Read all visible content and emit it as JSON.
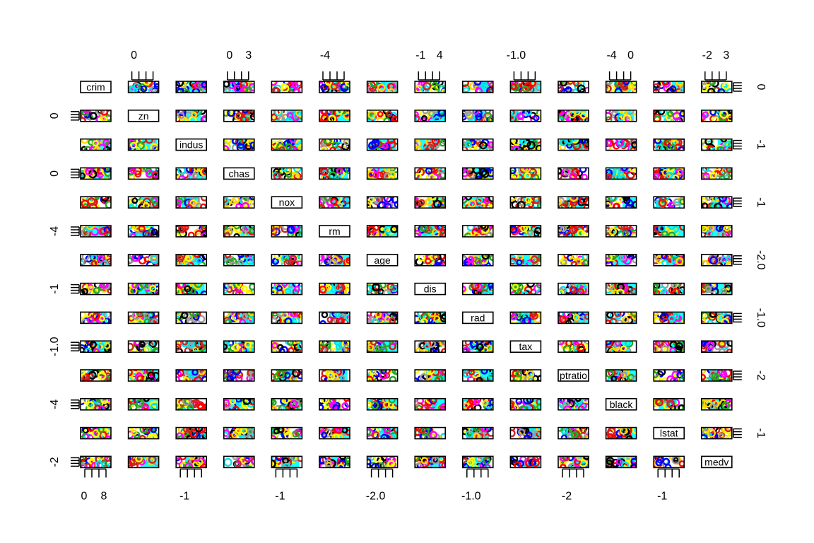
{
  "chart_data": {
    "type": "scatter",
    "subtype": "scatterplot-matrix",
    "title": "",
    "variables": [
      "crim",
      "zn",
      "indus",
      "chas",
      "nox",
      "rm",
      "age",
      "dis",
      "rad",
      "tax",
      "ptratio",
      "black",
      "lstat",
      "medv"
    ],
    "diagonal_labels": [
      "crim",
      "zn",
      "indus",
      "chas",
      "nox",
      "rm",
      "age",
      "dis",
      "rad",
      "tax",
      "ptratio",
      "black",
      "lstat",
      "medv"
    ],
    "top_axis_ticks": [
      {
        "column": 1,
        "labels": [
          "0"
        ]
      },
      {
        "column": 3,
        "labels": [
          "0",
          "3"
        ]
      },
      {
        "column": 5,
        "labels": [
          "-4"
        ]
      },
      {
        "column": 7,
        "labels": [
          "-1",
          "4"
        ]
      },
      {
        "column": 9,
        "labels": [
          "-1.0"
        ]
      },
      {
        "column": 11,
        "labels": [
          "-4",
          "0"
        ]
      },
      {
        "column": 13,
        "labels": [
          "-2",
          "3"
        ]
      }
    ],
    "bottom_axis_ticks": [
      {
        "column": 0,
        "labels": [
          "0",
          "8"
        ]
      },
      {
        "column": 2,
        "labels": [
          "-1"
        ]
      },
      {
        "column": 4,
        "labels": [
          "-1"
        ]
      },
      {
        "column": 6,
        "labels": [
          "-2.0"
        ]
      },
      {
        "column": 8,
        "labels": [
          "-1.0"
        ]
      },
      {
        "column": 10,
        "labels": [
          "-2"
        ]
      },
      {
        "column": 12,
        "labels": [
          "-1"
        ]
      }
    ],
    "left_axis_ticks": [
      {
        "row": 1,
        "labels": [
          "0"
        ]
      },
      {
        "row": 3,
        "labels": [
          "0"
        ]
      },
      {
        "row": 5,
        "labels": [
          "-4"
        ]
      },
      {
        "row": 7,
        "labels": [
          "-1"
        ]
      },
      {
        "row": 9,
        "labels": [
          "-1.0"
        ]
      },
      {
        "row": 11,
        "labels": [
          "-4"
        ]
      },
      {
        "row": 13,
        "labels": [
          "-2"
        ]
      }
    ],
    "right_axis_ticks": [
      {
        "row": 0,
        "labels": [
          "0"
        ]
      },
      {
        "row": 2,
        "labels": [
          "-1"
        ]
      },
      {
        "row": 4,
        "labels": [
          "-1"
        ]
      },
      {
        "row": 6,
        "labels": [
          "-2.0"
        ]
      },
      {
        "row": 8,
        "labels": [
          "-1.0"
        ]
      },
      {
        "row": 10,
        "labels": [
          "-2"
        ]
      },
      {
        "row": 12,
        "labels": [
          "-1"
        ]
      }
    ],
    "point_colors": [
      "#ff0000",
      "#000000",
      "#00e5ee",
      "#ffd700",
      "#0000ff",
      "#9e9e9e",
      "#cd2626",
      "#ff00ff",
      "#22aa22",
      "#ffff00"
    ],
    "background_fill_color": "#00ffff",
    "grid": false,
    "legend": "none"
  }
}
